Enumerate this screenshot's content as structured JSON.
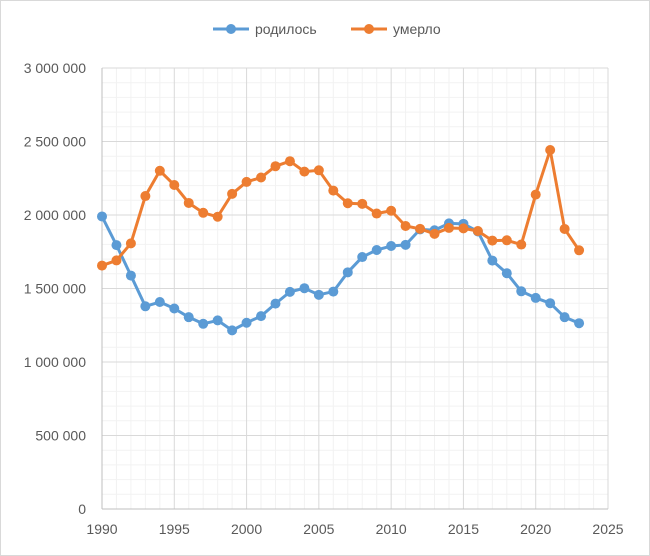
{
  "chart_data": {
    "type": "line",
    "title": "",
    "xlabel": "",
    "ylabel": "",
    "xlim": [
      1990,
      2025
    ],
    "ylim": [
      0,
      3000000
    ],
    "x_ticks": [
      1990,
      1995,
      2000,
      2005,
      2010,
      2015,
      2020,
      2025
    ],
    "x_tick_labels": [
      "1990",
      "1995",
      "2000",
      "2005",
      "2010",
      "2015",
      "2020",
      "2025"
    ],
    "y_ticks": [
      0,
      500000,
      1000000,
      1500000,
      2000000,
      2500000,
      3000000
    ],
    "y_tick_labels": [
      "0",
      "500 000",
      "1 000 000",
      "1 500 000",
      "2 000 000",
      "2 500 000",
      "3 000 000"
    ],
    "grid": true,
    "legend_position": "top",
    "x": [
      1990,
      1991,
      1992,
      1993,
      1994,
      1995,
      1996,
      1997,
      1998,
      1999,
      2000,
      2001,
      2002,
      2003,
      2004,
      2005,
      2006,
      2007,
      2008,
      2009,
      2010,
      2011,
      2012,
      2013,
      2014,
      2015,
      2016,
      2017,
      2018,
      2019,
      2020,
      2021,
      2022,
      2023
    ],
    "series": [
      {
        "name": "родилось",
        "color": "#5b9bd5",
        "values": [
          1990000,
          1795000,
          1588000,
          1379000,
          1408000,
          1364000,
          1305000,
          1260000,
          1283000,
          1215000,
          1267000,
          1312000,
          1397000,
          1477000,
          1502000,
          1457000,
          1479000,
          1610000,
          1714000,
          1762000,
          1789000,
          1797000,
          1902000,
          1896000,
          1943000,
          1940000,
          1888000,
          1690000,
          1604000,
          1481000,
          1436000,
          1400000,
          1305000,
          1264000
        ]
      },
      {
        "name": "умерло",
        "color": "#ed7d31",
        "values": [
          1656000,
          1691000,
          1807000,
          2129000,
          2301000,
          2204000,
          2082000,
          2015000,
          1988000,
          2144000,
          2225000,
          2255000,
          2332000,
          2366000,
          2295000,
          2304000,
          2166000,
          2080000,
          2076000,
          2010000,
          2029000,
          1925000,
          1906000,
          1872000,
          1912000,
          1909000,
          1891000,
          1826000,
          1828000,
          1799000,
          2139000,
          2442000,
          1905000,
          1760000
        ]
      }
    ]
  }
}
